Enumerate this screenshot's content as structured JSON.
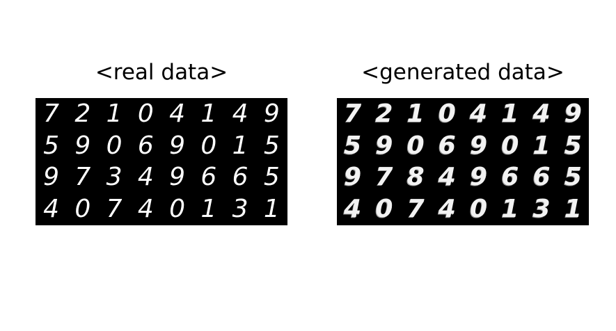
{
  "panels": {
    "real": {
      "caption": "<real data>",
      "digits": [
        "7",
        "2",
        "1",
        "0",
        "4",
        "1",
        "4",
        "9",
        "5",
        "9",
        "0",
        "6",
        "9",
        "0",
        "1",
        "5",
        "9",
        "7",
        "3",
        "4",
        "9",
        "6",
        "6",
        "5",
        "4",
        "0",
        "7",
        "4",
        "0",
        "1",
        "3",
        "1"
      ]
    },
    "generated": {
      "caption": "<generated data>",
      "digits": [
        "7",
        "2",
        "1",
        "0",
        "4",
        "1",
        "4",
        "9",
        "5",
        "9",
        "0",
        "6",
        "9",
        "0",
        "1",
        "5",
        "9",
        "7",
        "8",
        "4",
        "9",
        "6",
        "6",
        "5",
        "4",
        "0",
        "7",
        "4",
        "0",
        "1",
        "3",
        "1"
      ]
    }
  }
}
